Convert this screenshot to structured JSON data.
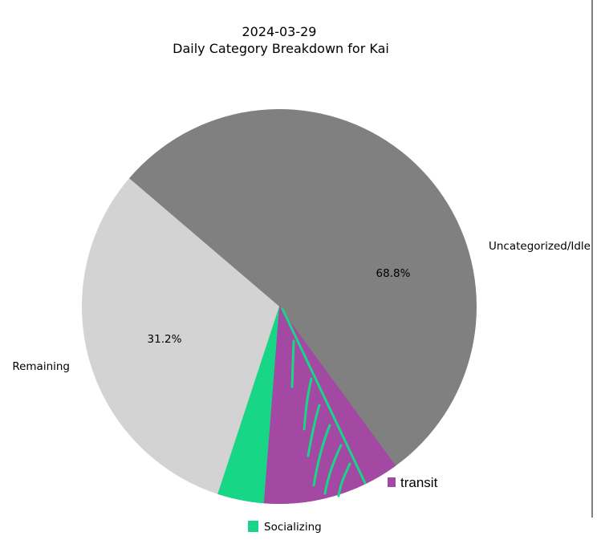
{
  "chart_data": {
    "type": "pie",
    "title": "2024-03-29",
    "subtitle": "Daily Category Breakdown for Kai",
    "slices": [
      {
        "label": "Uncategorized/Idle",
        "value": 68.8,
        "pct_label": "68.8%",
        "color": "#808080"
      },
      {
        "label": "Remaining",
        "value": 31.2,
        "pct_label": "31.2%",
        "color": "#d3d3d3"
      }
    ],
    "overlay_segments": [
      {
        "name": "transit",
        "value": 7.2,
        "color": "#a349a4"
      },
      {
        "name": "Socializing",
        "value": 3.8,
        "color": "#17d787"
      },
      {
        "name": "transit",
        "value": 4.1,
        "color": "#a349a4"
      }
    ],
    "legend": [
      {
        "label": "transit",
        "color": "#a349a4"
      },
      {
        "label": "Socializing",
        "color": "#17d787"
      }
    ],
    "legend_placement": "bottom"
  }
}
